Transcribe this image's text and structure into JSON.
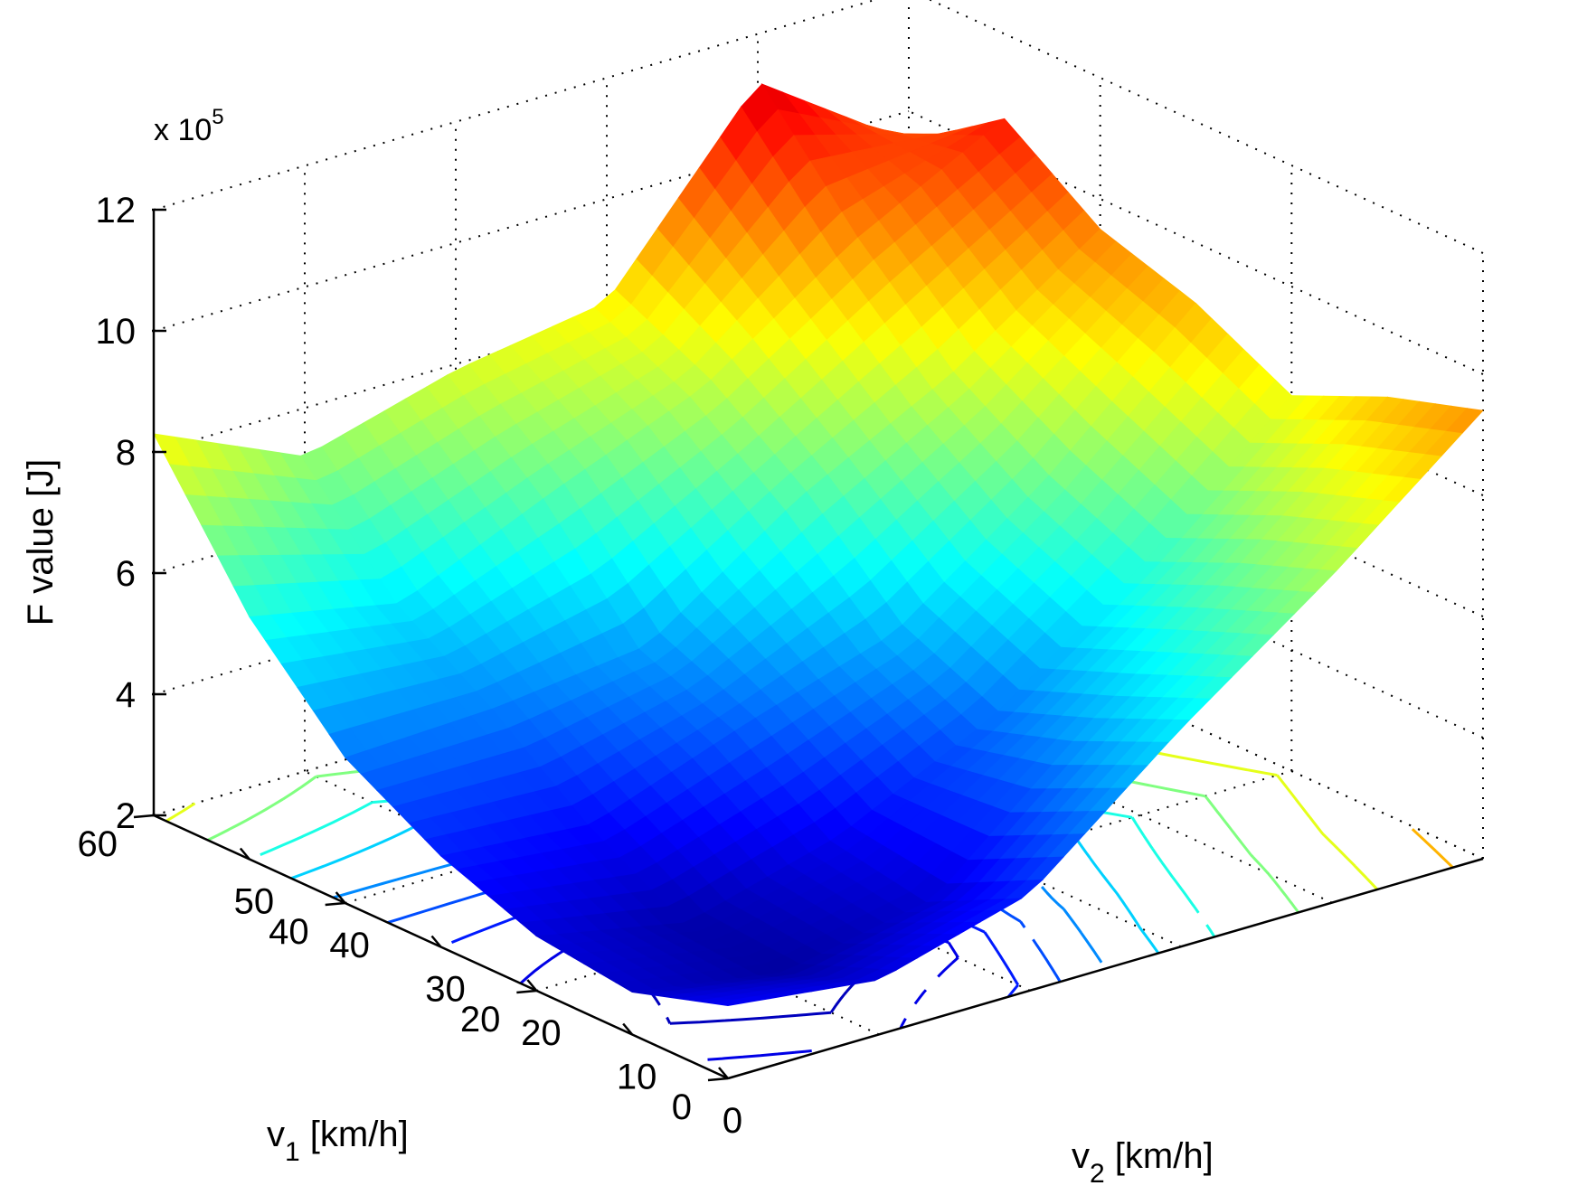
{
  "chart_data": {
    "type": "surface3d",
    "zlabel": "F value [J]",
    "xlabel_main": "v",
    "xlabel_sub": "1",
    "xlabel_unit": " [km/h]",
    "ylabel_main": "v",
    "ylabel_sub": "2",
    "ylabel_unit": " [km/h]",
    "zscale_prefix": "x 10",
    "zscale_exp": "5",
    "v1_ticks": [
      "0",
      "20",
      "40",
      "60"
    ],
    "v2_ticks": [
      "0",
      "10",
      "20",
      "30",
      "40",
      "50"
    ],
    "z_ticks": [
      "2",
      "4",
      "6",
      "8",
      "10",
      "12"
    ],
    "v1_range": [
      0,
      60
    ],
    "v2_range": [
      0,
      50
    ],
    "z_range": [
      2,
      12
    ],
    "grid": true,
    "colormap": "jet",
    "contour_projection": true,
    "surface": {
      "v1": [
        0,
        10,
        20,
        30,
        40,
        50,
        60
      ],
      "v2": [
        0,
        10,
        20,
        30,
        40,
        50
      ],
      "z": [
        [
          3.2,
          2.9,
          3.6,
          5.6,
          7.4,
          9.4
        ],
        [
          2.7,
          2.3,
          2.8,
          4.9,
          6.8,
          8.9
        ],
        [
          2.9,
          2.4,
          3.1,
          4.3,
          6.1,
          8.2
        ],
        [
          3.5,
          3.3,
          4.2,
          5.0,
          6.8,
          9.0
        ],
        [
          4.4,
          4.5,
          4.8,
          6.5,
          7.8,
          9.5
        ],
        [
          6.0,
          5.5,
          6.6,
          7.6,
          9.3,
          10.6
        ],
        [
          8.3,
          7.2,
          7.9,
          8.3,
          11.2,
          9.5
        ]
      ]
    }
  }
}
